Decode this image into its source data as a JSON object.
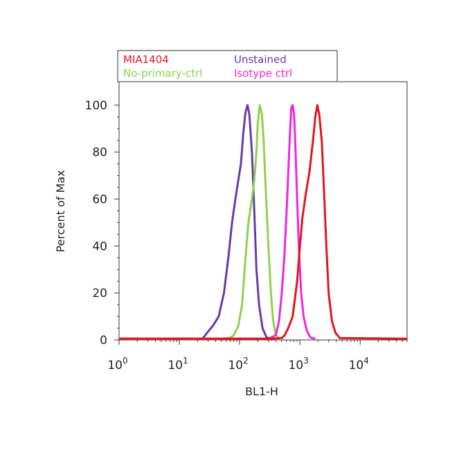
{
  "chart_data": {
    "type": "line",
    "title": "",
    "xlabel": "BL1-H",
    "ylabel": "Percent of Max",
    "x_scale": "log",
    "xlim": [
      1,
      60000
    ],
    "ylim": [
      0,
      110
    ],
    "x_ticks": [
      {
        "value": 1,
        "base": "10",
        "exp": "0"
      },
      {
        "value": 10,
        "base": "10",
        "exp": "1"
      },
      {
        "value": 100,
        "base": "10",
        "exp": "2"
      },
      {
        "value": 1000,
        "base": "10",
        "exp": "3"
      },
      {
        "value": 10000,
        "base": "10",
        "exp": "4"
      }
    ],
    "y_ticks": [
      0,
      20,
      40,
      60,
      80,
      100
    ],
    "grid": false,
    "legend_position": "top",
    "series": [
      {
        "name": "MIA1404",
        "color": "#e3141c",
        "x": [
          1,
          300,
          500,
          560,
          640,
          760,
          900,
          1000,
          1100,
          1250,
          1450,
          1650,
          1800,
          1950,
          2100,
          2300,
          2500,
          2750,
          3000,
          3400,
          3900,
          4600,
          60000
        ],
        "y": [
          0.5,
          0.5,
          0.8,
          2,
          5,
          10,
          25,
          40,
          52,
          62,
          72,
          85,
          95,
          100,
          96,
          85,
          65,
          40,
          20,
          8,
          3,
          0.8,
          0.5
        ]
      },
      {
        "name": "Unstained",
        "color": "#6a3aa6",
        "x": [
          1,
          24,
          27,
          31,
          36,
          45,
          55,
          65,
          75,
          85,
          95,
          105,
          115,
          125,
          135,
          145,
          160,
          175,
          190,
          210,
          240,
          280,
          360
        ],
        "y": [
          0.5,
          0.5,
          2,
          4,
          6,
          10,
          20,
          35,
          50,
          60,
          68,
          75,
          88,
          97,
          100,
          96,
          80,
          55,
          30,
          15,
          5,
          1,
          0.5
        ]
      },
      {
        "name": "No-primary-ctrl",
        "color": "#8fd14f",
        "x": [
          1,
          50,
          70,
          80,
          95,
          110,
          125,
          140,
          160,
          175,
          190,
          200,
          215,
          235,
          250,
          270,
          300,
          330,
          360,
          400,
          460
        ],
        "y": [
          0.5,
          0.5,
          1,
          2,
          6,
          15,
          35,
          50,
          60,
          68,
          80,
          92,
          100,
          96,
          85,
          65,
          40,
          20,
          8,
          2,
          0.5
        ]
      },
      {
        "name": "Isotype ctrl",
        "color": "#ef26dd",
        "x": [
          1,
          300,
          400,
          450,
          500,
          550,
          590,
          620,
          650,
          690,
          720,
          760,
          800,
          850,
          900,
          960,
          1050,
          1150,
          1300,
          1500,
          1800
        ],
        "y": [
          0.5,
          0.5,
          2,
          8,
          20,
          35,
          50,
          62,
          75,
          90,
          99,
          100,
          96,
          80,
          60,
          40,
          20,
          10,
          4,
          1,
          0.5
        ]
      }
    ]
  }
}
